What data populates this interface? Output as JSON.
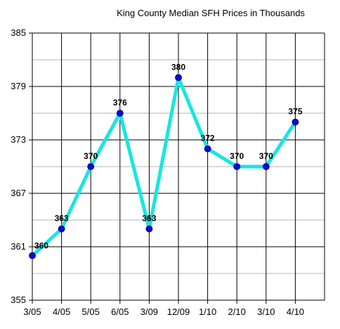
{
  "chart_data": {
    "type": "line",
    "title": "King County Median SFH Prices in Thousands",
    "xlabel": "",
    "ylabel": "",
    "categories": [
      "3/05",
      "4/05",
      "5/05",
      "6/05",
      "3/09",
      "12/09",
      "1/10",
      "2/10",
      "3/10",
      "4/10"
    ],
    "series": [
      {
        "values": [
          360,
          363,
          370,
          376,
          363,
          380,
          372,
          370,
          370,
          375
        ]
      }
    ],
    "data_labels": [
      "360",
      "363",
      "370",
      "376",
      "363",
      "380",
      "372",
      "370",
      "370",
      "375"
    ],
    "ylim": [
      355,
      385
    ],
    "y_ticks": [
      355,
      361,
      367,
      373,
      379,
      385
    ],
    "y_tick_labels": [
      "355",
      "361",
      "367",
      "373",
      "379",
      "385"
    ],
    "minor_grid_step": 3,
    "grid": true,
    "legend": "none",
    "colors": {
      "line": "#18e6e0",
      "marker": "#0a0adc",
      "major_grid": "#000000",
      "minor_grid": "#b4b4b4",
      "background": "#ffffff"
    }
  }
}
